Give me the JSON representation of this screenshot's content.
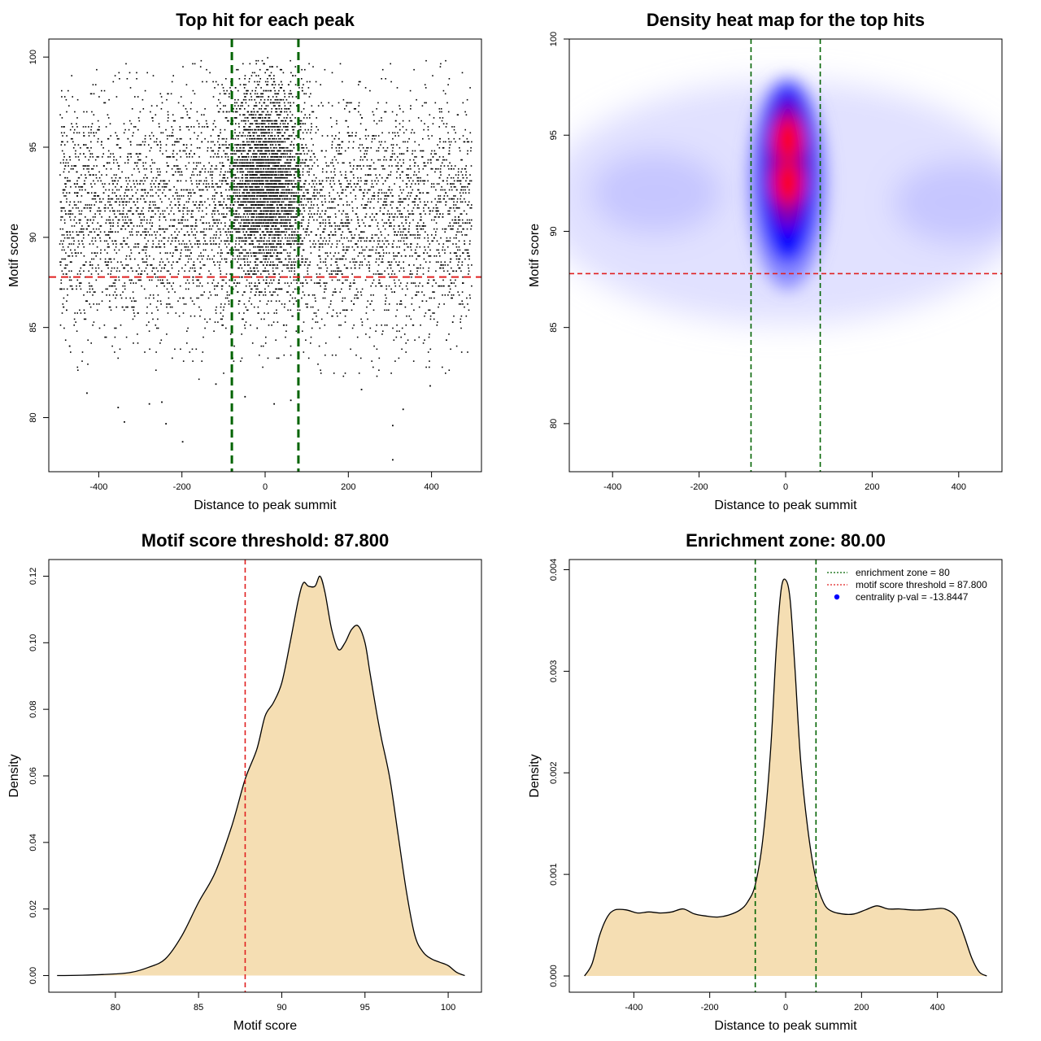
{
  "chart_data": [
    {
      "id": "scatter",
      "type": "scatter",
      "title": "Top hit for each peak",
      "xlabel": "Distance to peak summit",
      "ylabel": "Motif score",
      "xlim": [
        -520,
        520
      ],
      "ylim": [
        77,
        101
      ],
      "xticks": [
        -400,
        -200,
        0,
        200,
        400
      ],
      "yticks": [
        80,
        85,
        90,
        95,
        100
      ],
      "vlines": [
        -80,
        80
      ],
      "hline": 87.8,
      "colors": {
        "points": "#000000",
        "vlines": "#006400",
        "hline": "#e02020"
      },
      "outlier_points": [
        {
          "x": -355,
          "y": 80.6
        },
        {
          "x": -340,
          "y": 79.8
        },
        {
          "x": -280,
          "y": 80.8
        },
        {
          "x": -250,
          "y": 80.9
        },
        {
          "x": -200,
          "y": 78.7
        },
        {
          "x": -240,
          "y": 79.7
        },
        {
          "x": -430,
          "y": 81.4
        },
        {
          "x": 330,
          "y": 80.5
        },
        {
          "x": 305,
          "y": 79.6
        },
        {
          "x": 305,
          "y": 77.7
        },
        {
          "x": 20,
          "y": 80.8
        },
        {
          "x": -50,
          "y": 81.2
        },
        {
          "x": 60,
          "y": 81.0
        },
        {
          "x": 395,
          "y": 81.8
        },
        {
          "x": -120,
          "y": 81.9
        },
        {
          "x": 230,
          "y": 81.6
        }
      ]
    },
    {
      "id": "heatmap",
      "type": "heatmap",
      "title": "Density heat map for the top hits",
      "xlabel": "Distance to peak summit",
      "ylabel": "Motif score",
      "xlim": [
        -500,
        500
      ],
      "ylim": [
        77.5,
        100
      ],
      "xticks": [
        -400,
        -200,
        0,
        200,
        400
      ],
      "yticks": [
        80,
        85,
        90,
        95,
        100
      ],
      "vlines": [
        -80,
        80
      ],
      "hline": 87.8,
      "hotspots": [
        {
          "x": 5,
          "y": 94.8
        },
        {
          "x": 5,
          "y": 92.5
        }
      ],
      "colors": {
        "low": "#ffffff",
        "mid": "#0000ff",
        "high": "#ff0000",
        "vlines": "#006400",
        "hline": "#e02020"
      }
    },
    {
      "id": "score_density",
      "type": "area",
      "title": "Motif score threshold: 87.800",
      "xlabel": "Motif score",
      "ylabel": "Density",
      "xlim": [
        76,
        102
      ],
      "ylim": [
        -0.005,
        0.125
      ],
      "xticks": [
        80,
        85,
        90,
        95,
        100
      ],
      "yticks": [
        0.0,
        0.02,
        0.04,
        0.06,
        0.08,
        0.1,
        0.12
      ],
      "ytick_labels": [
        "0.00",
        "0.02",
        "0.04",
        "0.06",
        "0.08",
        "0.10",
        "0.12"
      ],
      "vline": 87.8,
      "colors": {
        "fill": "#f5deb3",
        "line": "#000000",
        "vline": "#e02020"
      },
      "x": [
        76.5,
        78,
        80,
        81,
        82,
        83,
        84,
        85,
        86,
        87,
        87.8,
        88.5,
        89,
        89.5,
        90,
        90.5,
        91,
        91.3,
        91.6,
        92,
        92.3,
        92.6,
        93,
        93.4,
        93.8,
        94.2,
        94.6,
        95,
        95.3,
        95.7,
        96,
        96.5,
        97,
        97.5,
        98,
        98.5,
        99,
        99.5,
        100,
        100.5,
        101
      ],
      "y": [
        0.0,
        0.0001,
        0.0005,
        0.001,
        0.0025,
        0.005,
        0.012,
        0.022,
        0.031,
        0.045,
        0.059,
        0.068,
        0.078,
        0.082,
        0.088,
        0.1,
        0.113,
        0.118,
        0.117,
        0.117,
        0.12,
        0.115,
        0.104,
        0.098,
        0.1,
        0.104,
        0.105,
        0.1,
        0.091,
        0.079,
        0.071,
        0.059,
        0.042,
        0.025,
        0.012,
        0.007,
        0.005,
        0.004,
        0.003,
        0.001,
        0.0
      ]
    },
    {
      "id": "distance_density",
      "type": "area",
      "title": "Enrichment zone: 80.00",
      "xlabel": "Distance to peak summit",
      "ylabel": "Density",
      "xlim": [
        -570,
        570
      ],
      "ylim": [
        -0.00016,
        0.0041
      ],
      "xticks": [
        -400,
        -200,
        0,
        200,
        400
      ],
      "yticks": [
        0.0,
        0.001,
        0.002,
        0.003,
        0.004
      ],
      "ytick_labels": [
        "0.000",
        "0.001",
        "0.002",
        "0.003",
        "0.004"
      ],
      "vlines": [
        -80,
        80
      ],
      "colors": {
        "fill": "#f5deb3",
        "line": "#000000",
        "vlines": "#006400",
        "hline_legend": "#e02020",
        "point_legend": "#0000ff"
      },
      "legend": [
        {
          "label": "enrichment zone = 80",
          "style": "dotted-green"
        },
        {
          "label": "motif score threshold = 87.800",
          "style": "dotted-red"
        },
        {
          "label": "centrality p-val = -13.8447",
          "style": "blue-dot"
        }
      ],
      "x": [
        -530,
        -510,
        -490,
        -470,
        -450,
        -420,
        -390,
        -360,
        -330,
        -300,
        -270,
        -240,
        -210,
        -180,
        -150,
        -120,
        -100,
        -80,
        -60,
        -40,
        -25,
        -12,
        0,
        12,
        25,
        40,
        60,
        80,
        100,
        120,
        150,
        180,
        210,
        240,
        270,
        300,
        330,
        360,
        390,
        420,
        450,
        470,
        490,
        510,
        530
      ],
      "y": [
        0.0,
        0.00012,
        0.0004,
        0.00058,
        0.00065,
        0.00065,
        0.00062,
        0.00063,
        0.00062,
        0.00063,
        0.00066,
        0.00061,
        0.00059,
        0.00058,
        0.0006,
        0.00065,
        0.00073,
        0.0009,
        0.00135,
        0.0022,
        0.0032,
        0.0038,
        0.0039,
        0.0037,
        0.003,
        0.0021,
        0.0014,
        0.00095,
        0.00072,
        0.00064,
        0.00061,
        0.00061,
        0.00065,
        0.00069,
        0.00066,
        0.00066,
        0.00065,
        0.00065,
        0.00066,
        0.00066,
        0.00058,
        0.0004,
        0.00018,
        4e-05,
        0.0
      ]
    }
  ]
}
